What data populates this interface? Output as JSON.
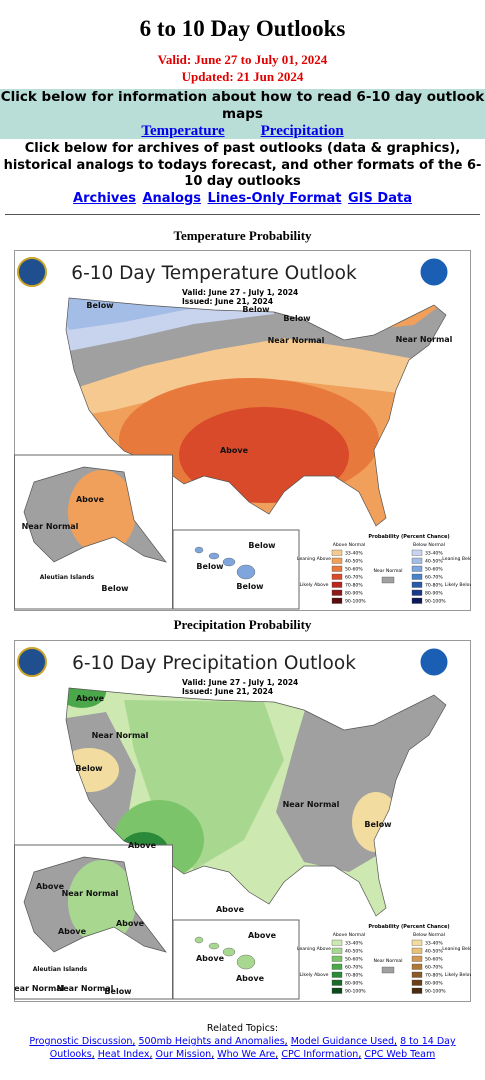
{
  "header": {
    "title": "6 to 10 Day Outlooks",
    "valid": "Valid: June 27 to July 01, 2024",
    "updated": "Updated: 21 Jun 2024"
  },
  "info_box": {
    "text": "Click below for information about how to read 6-10 day outlook maps",
    "links": [
      "Temperature",
      "Precipitation"
    ]
  },
  "archives": {
    "text": "Click below for archives of past outlooks (data & graphics), historical analogs to todays forecast, and other formats of the 6-10 day outlooks",
    "links": [
      "Archives",
      "Analogs",
      "Lines-Only Format",
      "GIS Data"
    ]
  },
  "maps": [
    {
      "caption": "Temperature Probability",
      "title": "6-10 Day Temperature Outlook",
      "valid": "Valid:   June 27 - July 1, 2024",
      "issued": "Issued:   June 21, 2024",
      "labels": [
        "Below",
        "Below",
        "Below",
        "Near Normal",
        "Near Normal",
        "Above",
        "Above",
        "Near Normal",
        "Aleutian Islands",
        "Below",
        "Below",
        "Below",
        "Below"
      ]
    },
    {
      "caption": "Precipitation Probability",
      "title": "6-10 Day Precipitation Outlook",
      "valid": "Valid:   June 27 - July 1, 2024",
      "issued": "Issued:   June 21, 2024",
      "labels": [
        "Above",
        "Near Normal",
        "Below",
        "Above",
        "Near Normal",
        "Below",
        "Above",
        "Above",
        "Near Normal",
        "Above",
        "Above",
        "Aleutian Islands",
        "Near Normal",
        "Near Normal",
        "Below",
        "Above",
        "Above",
        "Above"
      ]
    }
  ],
  "legend": {
    "heading": "Probability (Percent Chance)",
    "above": "Above Normal",
    "below": "Below Normal",
    "leaning_above": "Leaning Above",
    "likely_above": "Likely Above",
    "near": "Near Normal",
    "leaning_below": "Leaning Below",
    "likely_below": "Likely Below",
    "percents": [
      "33-40%",
      "40-50%",
      "50-60%",
      "60-70%",
      "70-80%",
      "80-90%",
      "90-100%"
    ]
  },
  "related": {
    "heading": "Related Topics:",
    "links": [
      "Prognostic Discussion",
      "500mb Heights and Anomalies",
      "Model Guidance Used",
      "8 to 14 Day Outlooks",
      "Heat Index",
      "Our Mission",
      "Who We Are",
      "CPC Information",
      "CPC Web Team"
    ]
  }
}
